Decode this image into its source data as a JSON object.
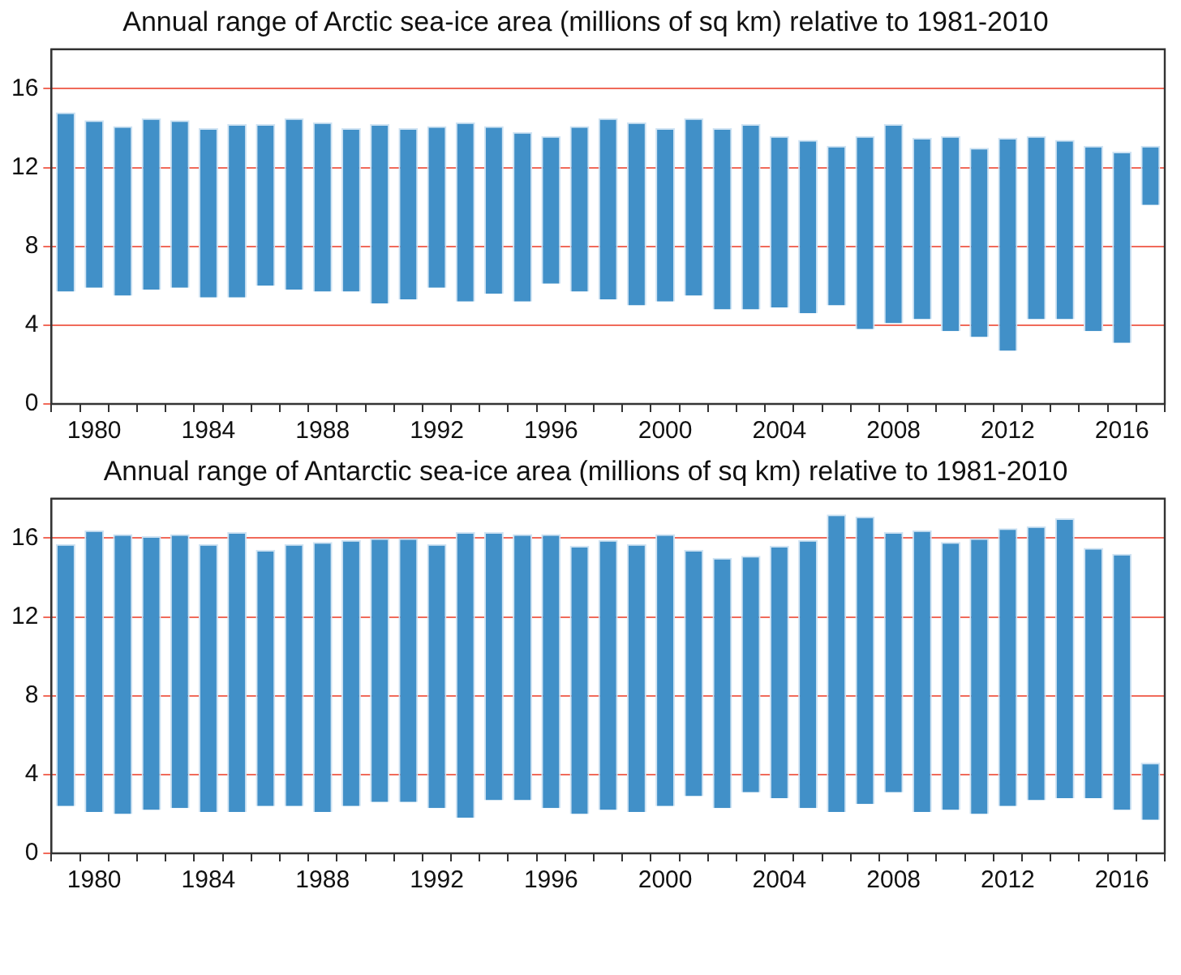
{
  "chart_data": [
    {
      "type": "bar",
      "title": "Annual range of Arctic sea-ice area (millions of sq km) relative to 1981-2010",
      "categories": [
        null,
        "1980",
        null,
        null,
        null,
        "1984",
        null,
        null,
        null,
        "1988",
        null,
        null,
        null,
        "1992",
        null,
        null,
        null,
        "1996",
        null,
        null,
        null,
        "2000",
        null,
        null,
        null,
        "2004",
        null,
        null,
        null,
        "2008",
        null,
        null,
        null,
        "2012",
        null,
        null,
        null,
        "2016",
        null
      ],
      "series": [
        {
          "color": "#4190c8",
          "values": [
            9.1,
            8.5,
            8.6,
            8.7,
            8.5,
            8.6,
            8.8,
            8.2,
            8.7,
            8.6,
            8.3,
            9.1,
            8.7,
            8.2,
            9.1,
            8.5,
            8.6,
            7.5,
            8.4,
            9.2,
            9.3,
            8.8,
            9.0,
            9.2,
            9.4,
            8.7,
            8.8,
            8.1,
            9.8,
            10.1,
            9.2,
            9.9,
            9.6,
            10.8,
            9.3,
            9.1,
            9.4,
            9.7,
            3.0
          ],
          "base": [
            5.7,
            5.9,
            5.5,
            5.8,
            5.9,
            5.4,
            5.4,
            6.0,
            5.8,
            5.7,
            5.7,
            5.1,
            5.3,
            5.9,
            5.2,
            5.6,
            5.2,
            6.1,
            5.7,
            5.3,
            5.0,
            5.2,
            5.5,
            4.8,
            4.8,
            4.9,
            4.6,
            5.0,
            3.8,
            4.1,
            4.3,
            3.7,
            3.4,
            2.7,
            4.3,
            4.3,
            3.7,
            3.1,
            10.1
          ]
        }
      ],
      "ylim": [
        0,
        18
      ],
      "yticks": [
        0,
        4,
        8,
        12,
        16
      ],
      "grid": "y",
      "legend": false
    },
    {
      "type": "bar",
      "title": "Annual range of Antarctic sea-ice area (millions of sq km) relative to 1981-2010",
      "categories": [
        null,
        "1980",
        null,
        null,
        null,
        "1984",
        null,
        null,
        null,
        "1988",
        null,
        null,
        null,
        "1992",
        null,
        null,
        null,
        "1996",
        null,
        null,
        null,
        "2000",
        null,
        null,
        null,
        "2004",
        null,
        null,
        null,
        "2008",
        null,
        null,
        null,
        "2012",
        null,
        null,
        null,
        "2016",
        null
      ],
      "series": [
        {
          "color": "#4190c8",
          "values": [
            13.3,
            14.3,
            14.2,
            13.9,
            13.9,
            13.6,
            14.2,
            13.0,
            13.3,
            13.7,
            13.5,
            13.4,
            13.4,
            13.4,
            14.5,
            13.6,
            13.5,
            13.9,
            13.6,
            13.7,
            13.6,
            13.8,
            12.5,
            12.7,
            12.0,
            12.8,
            13.6,
            15.1,
            14.6,
            13.2,
            14.3,
            13.6,
            14.0,
            14.1,
            13.9,
            14.2,
            12.7,
            13.0,
            2.9
          ],
          "base": [
            2.4,
            2.1,
            2.0,
            2.2,
            2.3,
            2.1,
            2.1,
            2.4,
            2.4,
            2.1,
            2.4,
            2.6,
            2.6,
            2.3,
            1.8,
            2.7,
            2.7,
            2.3,
            2.0,
            2.2,
            2.1,
            2.4,
            2.9,
            2.3,
            3.1,
            2.8,
            2.3,
            2.1,
            2.5,
            3.1,
            2.1,
            2.2,
            2.0,
            2.4,
            2.7,
            2.8,
            2.8,
            2.2,
            1.7
          ]
        }
      ],
      "ylim": [
        0,
        18
      ],
      "yticks": [
        0,
        4,
        8,
        12,
        16
      ],
      "grid": "y",
      "legend": false
    }
  ]
}
